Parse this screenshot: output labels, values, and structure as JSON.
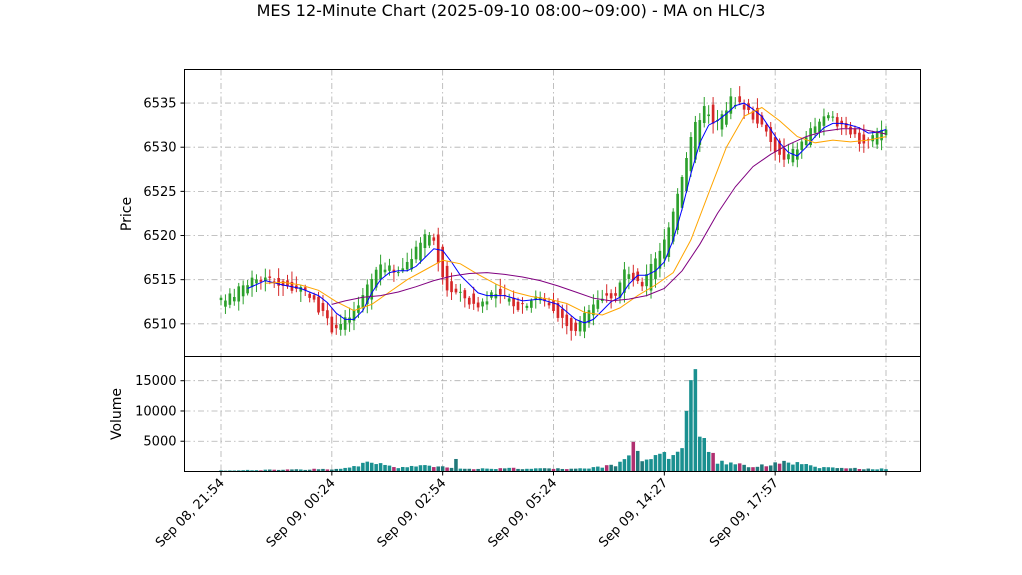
{
  "chart_data": {
    "type": "candlestick",
    "title": "MES 12-Minute Chart (2025-09-10 08:00~09:00) - MA on HLC/3",
    "price_panel": {
      "ylabel": "Price",
      "ylim": [
        6506.3,
        6538.8
      ],
      "yticks": [
        6510,
        6515,
        6520,
        6525,
        6530,
        6535
      ],
      "up_color": "#2ca02c",
      "down_color": "#d62728"
    },
    "volume_panel": {
      "ylabel": "Volume",
      "ylim": [
        0,
        19000
      ],
      "yticks": [
        5000,
        10000,
        15000
      ]
    },
    "x_tick_labels": [
      "Sep 08, 21:54",
      "Sep 09, 00:24",
      "Sep 09, 02:54",
      "Sep 09, 05:24",
      "Sep 09, 14:27",
      "Sep 09, 17:57"
    ],
    "x_tick_positions": [
      0,
      25,
      50,
      75,
      100,
      125
    ],
    "bar_count": 151,
    "price_path": [
      {
        "i": 0,
        "p": 6512.3
      },
      {
        "i": 3,
        "p": 6513.0
      },
      {
        "i": 6,
        "p": 6514.3
      },
      {
        "i": 8,
        "p": 6515.1
      },
      {
        "i": 12,
        "p": 6515.0
      },
      {
        "i": 16,
        "p": 6514.2
      },
      {
        "i": 20,
        "p": 6513.5
      },
      {
        "i": 22,
        "p": 6512.5
      },
      {
        "i": 24,
        "p": 6511.0
      },
      {
        "i": 26,
        "p": 6509.5
      },
      {
        "i": 28,
        "p": 6510.0
      },
      {
        "i": 30,
        "p": 6510.8
      },
      {
        "i": 32,
        "p": 6512.0
      },
      {
        "i": 34,
        "p": 6514.5
      },
      {
        "i": 36,
        "p": 6516.0
      },
      {
        "i": 38,
        "p": 6516.5
      },
      {
        "i": 40,
        "p": 6516.0
      },
      {
        "i": 42,
        "p": 6516.5
      },
      {
        "i": 44,
        "p": 6517.5
      },
      {
        "i": 46,
        "p": 6519.0
      },
      {
        "i": 48,
        "p": 6520.5
      },
      {
        "i": 49,
        "p": 6519.0
      },
      {
        "i": 50,
        "p": 6516.5
      },
      {
        "i": 52,
        "p": 6514.0
      },
      {
        "i": 54,
        "p": 6513.5
      },
      {
        "i": 56,
        "p": 6513.0
      },
      {
        "i": 58,
        "p": 6512.0
      },
      {
        "i": 60,
        "p": 6512.5
      },
      {
        "i": 62,
        "p": 6513.5
      },
      {
        "i": 64,
        "p": 6513.0
      },
      {
        "i": 66,
        "p": 6512.8
      },
      {
        "i": 68,
        "p": 6512.0
      },
      {
        "i": 70,
        "p": 6512.5
      },
      {
        "i": 72,
        "p": 6513.2
      },
      {
        "i": 74,
        "p": 6512.5
      },
      {
        "i": 76,
        "p": 6511.8
      },
      {
        "i": 78,
        "p": 6510.5
      },
      {
        "i": 80,
        "p": 6509.0
      },
      {
        "i": 82,
        "p": 6510.0
      },
      {
        "i": 84,
        "p": 6512.0
      },
      {
        "i": 86,
        "p": 6513.0
      },
      {
        "i": 88,
        "p": 6513.0
      },
      {
        "i": 90,
        "p": 6513.5
      },
      {
        "i": 92,
        "p": 6516.0
      },
      {
        "i": 94,
        "p": 6515.0
      },
      {
        "i": 96,
        "p": 6514.0
      },
      {
        "i": 98,
        "p": 6516.5
      },
      {
        "i": 100,
        "p": 6518.0
      },
      {
        "i": 102,
        "p": 6521.0
      },
      {
        "i": 104,
        "p": 6525.0
      },
      {
        "i": 106,
        "p": 6529.0
      },
      {
        "i": 108,
        "p": 6532.5
      },
      {
        "i": 110,
        "p": 6534.5
      },
      {
        "i": 112,
        "p": 6532.5
      },
      {
        "i": 114,
        "p": 6533.5
      },
      {
        "i": 116,
        "p": 6535.5
      },
      {
        "i": 118,
        "p": 6535.0
      },
      {
        "i": 120,
        "p": 6534.0
      },
      {
        "i": 122,
        "p": 6533.0
      },
      {
        "i": 124,
        "p": 6531.5
      },
      {
        "i": 126,
        "p": 6529.5
      },
      {
        "i": 128,
        "p": 6528.5
      },
      {
        "i": 130,
        "p": 6529.5
      },
      {
        "i": 132,
        "p": 6530.5
      },
      {
        "i": 134,
        "p": 6532.0
      },
      {
        "i": 136,
        "p": 6533.0
      },
      {
        "i": 138,
        "p": 6533.2
      },
      {
        "i": 140,
        "p": 6532.8
      },
      {
        "i": 142,
        "p": 6532.5
      },
      {
        "i": 144,
        "p": 6531.0
      },
      {
        "i": 146,
        "p": 6530.5
      },
      {
        "i": 148,
        "p": 6531.0
      },
      {
        "i": 150,
        "p": 6532.0
      }
    ],
    "volume_profile": [
      {
        "i": 0,
        "v": 150
      },
      {
        "i": 24,
        "v": 400
      },
      {
        "i": 28,
        "v": 500
      },
      {
        "i": 33,
        "v": 1500
      },
      {
        "i": 40,
        "v": 600
      },
      {
        "i": 45,
        "v": 1000
      },
      {
        "i": 52,
        "v": 600
      },
      {
        "i": 53,
        "v": 2600
      },
      {
        "i": 54,
        "v": 500
      },
      {
        "i": 70,
        "v": 500
      },
      {
        "i": 80,
        "v": 400
      },
      {
        "i": 84,
        "v": 700
      },
      {
        "i": 88,
        "v": 900
      },
      {
        "i": 90,
        "v": 1300
      },
      {
        "i": 93,
        "v": 4400
      },
      {
        "i": 95,
        "v": 2000
      },
      {
        "i": 98,
        "v": 2700
      },
      {
        "i": 101,
        "v": 2600
      },
      {
        "i": 104,
        "v": 5000
      },
      {
        "i": 106,
        "v": 14500
      },
      {
        "i": 107,
        "v": 17500
      },
      {
        "i": 108,
        "v": 7000
      },
      {
        "i": 110,
        "v": 3500
      },
      {
        "i": 112,
        "v": 1500
      },
      {
        "i": 116,
        "v": 1500
      },
      {
        "i": 120,
        "v": 700
      },
      {
        "i": 126,
        "v": 1500
      },
      {
        "i": 130,
        "v": 1400
      },
      {
        "i": 135,
        "v": 600
      },
      {
        "i": 150,
        "v": 400
      }
    ],
    "ma_series": [
      {
        "color": "#0000ff",
        "points": [
          {
            "i": 6,
            "p": 6514.0
          },
          {
            "i": 10,
            "p": 6514.9
          },
          {
            "i": 14,
            "p": 6514.4
          },
          {
            "i": 18,
            "p": 6514.0
          },
          {
            "i": 22,
            "p": 6513.2
          },
          {
            "i": 24,
            "p": 6512.4
          },
          {
            "i": 26,
            "p": 6511.2
          },
          {
            "i": 28,
            "p": 6510.5
          },
          {
            "i": 30,
            "p": 6510.5
          },
          {
            "i": 32,
            "p": 6511.5
          },
          {
            "i": 34,
            "p": 6513.5
          },
          {
            "i": 36,
            "p": 6515.0
          },
          {
            "i": 38,
            "p": 6515.8
          },
          {
            "i": 40,
            "p": 6516.0
          },
          {
            "i": 42,
            "p": 6516.0
          },
          {
            "i": 44,
            "p": 6516.5
          },
          {
            "i": 46,
            "p": 6517.5
          },
          {
            "i": 48,
            "p": 6518.5
          },
          {
            "i": 50,
            "p": 6518.3
          },
          {
            "i": 52,
            "p": 6517.0
          },
          {
            "i": 54,
            "p": 6515.5
          },
          {
            "i": 56,
            "p": 6514.5
          },
          {
            "i": 58,
            "p": 6513.5
          },
          {
            "i": 60,
            "p": 6513.2
          },
          {
            "i": 64,
            "p": 6513.2
          },
          {
            "i": 68,
            "p": 6512.6
          },
          {
            "i": 72,
            "p": 6512.8
          },
          {
            "i": 76,
            "p": 6512.2
          },
          {
            "i": 80,
            "p": 6510.5
          },
          {
            "i": 82,
            "p": 6510.1
          },
          {
            "i": 84,
            "p": 6510.5
          },
          {
            "i": 86,
            "p": 6511.5
          },
          {
            "i": 88,
            "p": 6512.5
          },
          {
            "i": 90,
            "p": 6513.0
          },
          {
            "i": 92,
            "p": 6514.5
          },
          {
            "i": 94,
            "p": 6515.5
          },
          {
            "i": 96,
            "p": 6515.5
          },
          {
            "i": 98,
            "p": 6516.0
          },
          {
            "i": 100,
            "p": 6517.0
          },
          {
            "i": 102,
            "p": 6519.5
          },
          {
            "i": 104,
            "p": 6523.0
          },
          {
            "i": 106,
            "p": 6527.0
          },
          {
            "i": 108,
            "p": 6530.5
          },
          {
            "i": 110,
            "p": 6532.5
          },
          {
            "i": 112,
            "p": 6533.0
          },
          {
            "i": 114,
            "p": 6533.8
          },
          {
            "i": 116,
            "p": 6534.7
          },
          {
            "i": 118,
            "p": 6535.0
          },
          {
            "i": 120,
            "p": 6534.3
          },
          {
            "i": 122,
            "p": 6533.5
          },
          {
            "i": 124,
            "p": 6532.0
          },
          {
            "i": 126,
            "p": 6530.5
          },
          {
            "i": 128,
            "p": 6529.4
          },
          {
            "i": 130,
            "p": 6529.0
          },
          {
            "i": 132,
            "p": 6530.0
          },
          {
            "i": 134,
            "p": 6531.2
          },
          {
            "i": 136,
            "p": 6532.2
          },
          {
            "i": 138,
            "p": 6532.7
          },
          {
            "i": 140,
            "p": 6532.7
          },
          {
            "i": 142,
            "p": 6532.5
          },
          {
            "i": 144,
            "p": 6532.2
          },
          {
            "i": 146,
            "p": 6531.6
          },
          {
            "i": 148,
            "p": 6531.7
          },
          {
            "i": 150,
            "p": 6532.0
          }
        ]
      },
      {
        "color": "#ffa500",
        "points": [
          {
            "i": 10,
            "p": 6514.6
          },
          {
            "i": 14,
            "p": 6514.7
          },
          {
            "i": 18,
            "p": 6514.4
          },
          {
            "i": 22,
            "p": 6513.8
          },
          {
            "i": 26,
            "p": 6512.5
          },
          {
            "i": 30,
            "p": 6511.5
          },
          {
            "i": 34,
            "p": 6512.2
          },
          {
            "i": 38,
            "p": 6513.6
          },
          {
            "i": 42,
            "p": 6515.0
          },
          {
            "i": 46,
            "p": 6516.1
          },
          {
            "i": 50,
            "p": 6517.2
          },
          {
            "i": 54,
            "p": 6516.8
          },
          {
            "i": 58,
            "p": 6515.6
          },
          {
            "i": 62,
            "p": 6514.5
          },
          {
            "i": 66,
            "p": 6513.6
          },
          {
            "i": 70,
            "p": 6513.1
          },
          {
            "i": 74,
            "p": 6512.8
          },
          {
            "i": 78,
            "p": 6512.3
          },
          {
            "i": 82,
            "p": 6511.3
          },
          {
            "i": 86,
            "p": 6511.0
          },
          {
            "i": 90,
            "p": 6511.8
          },
          {
            "i": 94,
            "p": 6513.2
          },
          {
            "i": 98,
            "p": 6514.4
          },
          {
            "i": 102,
            "p": 6515.8
          },
          {
            "i": 106,
            "p": 6519.5
          },
          {
            "i": 110,
            "p": 6524.8
          },
          {
            "i": 114,
            "p": 6530.0
          },
          {
            "i": 118,
            "p": 6533.5
          },
          {
            "i": 122,
            "p": 6534.5
          },
          {
            "i": 126,
            "p": 6533.0
          },
          {
            "i": 130,
            "p": 6531.2
          },
          {
            "i": 134,
            "p": 6530.5
          },
          {
            "i": 138,
            "p": 6530.8
          },
          {
            "i": 142,
            "p": 6530.6
          },
          {
            "i": 146,
            "p": 6530.8
          },
          {
            "i": 150,
            "p": 6531.2
          }
        ]
      },
      {
        "color": "#800080",
        "points": [
          {
            "i": 25,
            "p": 6512.2
          },
          {
            "i": 28,
            "p": 6512.6
          },
          {
            "i": 32,
            "p": 6513.0
          },
          {
            "i": 36,
            "p": 6513.2
          },
          {
            "i": 40,
            "p": 6513.6
          },
          {
            "i": 44,
            "p": 6514.2
          },
          {
            "i": 48,
            "p": 6514.9
          },
          {
            "i": 52,
            "p": 6515.4
          },
          {
            "i": 56,
            "p": 6515.7
          },
          {
            "i": 60,
            "p": 6515.8
          },
          {
            "i": 64,
            "p": 6515.6
          },
          {
            "i": 68,
            "p": 6515.3
          },
          {
            "i": 72,
            "p": 6514.9
          },
          {
            "i": 76,
            "p": 6514.3
          },
          {
            "i": 80,
            "p": 6513.6
          },
          {
            "i": 84,
            "p": 6512.9
          },
          {
            "i": 88,
            "p": 6512.6
          },
          {
            "i": 92,
            "p": 6512.8
          },
          {
            "i": 96,
            "p": 6513.2
          },
          {
            "i": 100,
            "p": 6514.0
          },
          {
            "i": 104,
            "p": 6516.0
          },
          {
            "i": 108,
            "p": 6519.0
          },
          {
            "i": 112,
            "p": 6522.5
          },
          {
            "i": 116,
            "p": 6525.5
          },
          {
            "i": 120,
            "p": 6527.8
          },
          {
            "i": 124,
            "p": 6529.2
          },
          {
            "i": 128,
            "p": 6530.3
          },
          {
            "i": 132,
            "p": 6531.2
          },
          {
            "i": 136,
            "p": 6531.8
          },
          {
            "i": 140,
            "p": 6532.1
          },
          {
            "i": 144,
            "p": 6532.1
          },
          {
            "i": 148,
            "p": 6531.7
          },
          {
            "i": 150,
            "p": 6531.5
          }
        ]
      }
    ]
  }
}
